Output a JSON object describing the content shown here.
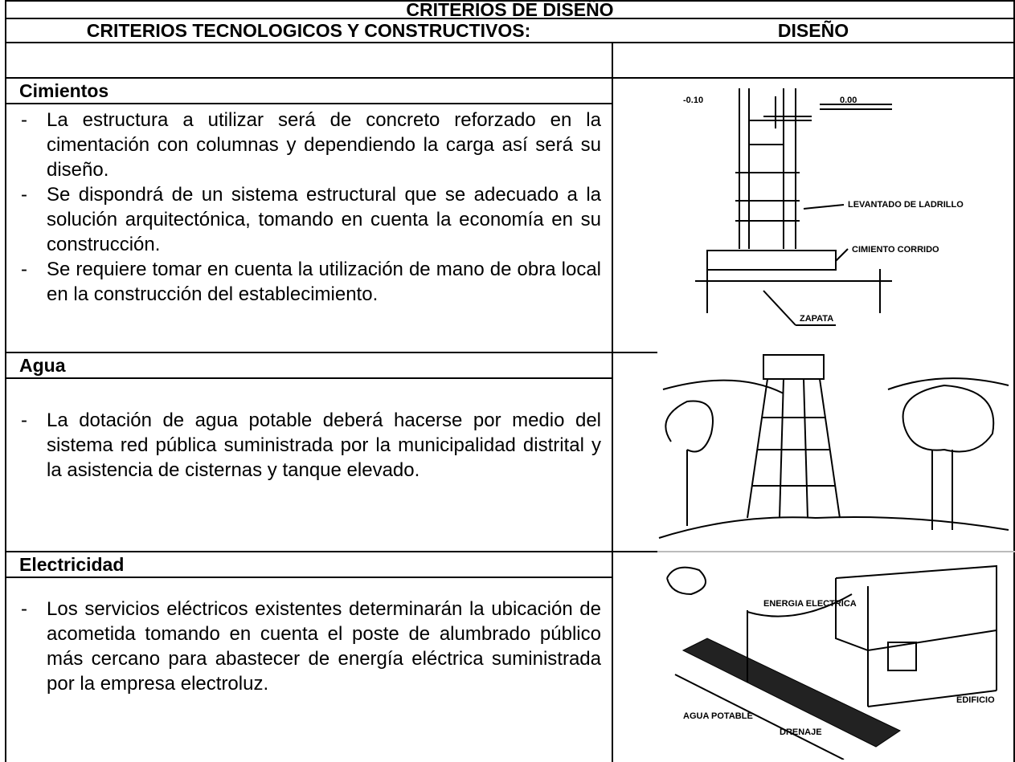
{
  "header": {
    "title": "CRITERIOS DE DISEÑO",
    "left": "CRITERIOS TECNOLOGICOS Y CONSTRUCTIVOS:",
    "right": "DISEÑO"
  },
  "sections": [
    {
      "title": "Cimientos",
      "items": [
        "La estructura a utilizar será de concreto reforzado en la cimentación con columnas y dependiendo la carga así será su diseño.",
        "Se dispondrá de un sistema estructural que se adecuado a la solución arquitectónica, tomando en cuenta la economía en su construcción.",
        "Se requiere tomar en cuenta la utilización de mano de obra local en la construcción del establecimiento."
      ],
      "drawing_labels": [
        "0.00",
        "-0.10",
        "LEVANTADO DE LADRILLO",
        "CIMIENTO CORRIDO",
        "ZAPATA"
      ]
    },
    {
      "title": "Agua",
      "items": [
        "La dotación de agua potable deberá hacerse por medio del sistema red pública suministrada por la municipalidad distrital y la asistencia de cisternas y tanque elevado."
      ]
    },
    {
      "title": "Electricidad",
      "items": [
        "Los servicios eléctricos existentes determinarán la ubicación de acometida tomando en cuenta el poste de alumbrado público más cercano para abastecer de energía eléctrica suministrada por la empresa electroluz."
      ],
      "drawing_labels": [
        "ENERGIA ELECTRICA",
        "EDIFICIO",
        "AGUA POTABLE",
        "DRENAJE"
      ]
    }
  ]
}
